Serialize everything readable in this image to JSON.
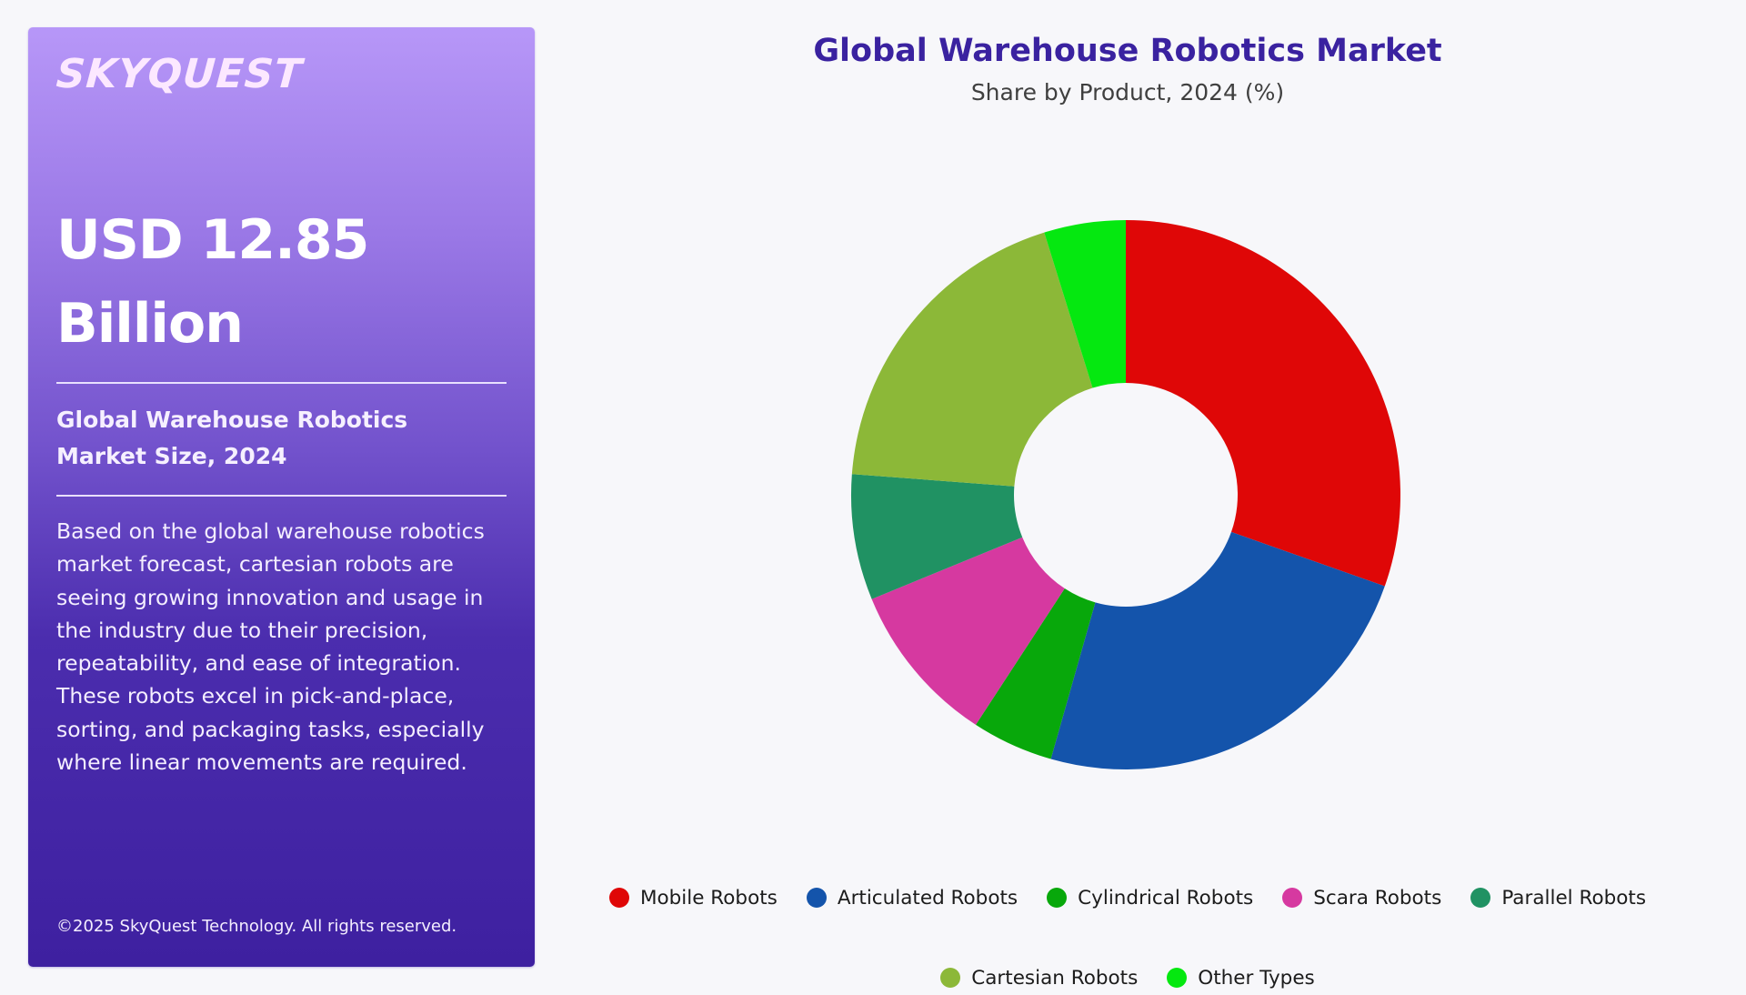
{
  "panel": {
    "logo": "SKYQUEST",
    "value_line1": "USD 12.85",
    "value_line2": "Billion",
    "heading_line1": "Global Warehouse Robotics",
    "heading_line2": "Market Size, 2024",
    "description": "Based on the global warehouse robotics market forecast, cartesian robots are seeing growing innovation and usage in the industry due to their precision, repeatability, and ease of integration. These robots excel in pick-and-place, sorting, and packaging tasks, especially where linear movements are required.",
    "footer": "©2025 SkyQuest Technology. All rights reserved."
  },
  "chart": {
    "title": "Global Warehouse Robotics Market",
    "subtitle": "Share by Product, 2024 (%)"
  },
  "legend": [
    {
      "label": "Mobile Robots",
      "color": "#DF0707"
    },
    {
      "label": "Articulated Robots",
      "color": "#1454AB"
    },
    {
      "label": "Cylindrical Robots",
      "color": "#08A80B"
    },
    {
      "label": "Scara Robots",
      "color": "#D639A0"
    },
    {
      "label": "Parallel Robots",
      "color": "#209263"
    },
    {
      "label": "Cartesian Robots",
      "color": "#8CB838"
    },
    {
      "label": "Other Types",
      "color": "#05E810"
    }
  ],
  "chart_data": {
    "type": "pie",
    "variant": "donut",
    "title": "Global Warehouse Robotics Market",
    "subtitle": "Share by Product, 2024 (%)",
    "categories": [
      "Mobile Robots",
      "Articulated Robots",
      "Cylindrical Robots",
      "Scara Robots",
      "Parallel Robots",
      "Cartesian Robots",
      "Other Types"
    ],
    "values": [
      30.4,
      24.0,
      4.8,
      9.6,
      7.4,
      19.0,
      4.8
    ],
    "colors": [
      "#DF0707",
      "#1454AB",
      "#08A80B",
      "#D639A0",
      "#209263",
      "#8CB838",
      "#05E810"
    ],
    "start_angle_deg": 0,
    "direction": "clockwise",
    "data_labels": false,
    "legend_position": "bottom"
  }
}
